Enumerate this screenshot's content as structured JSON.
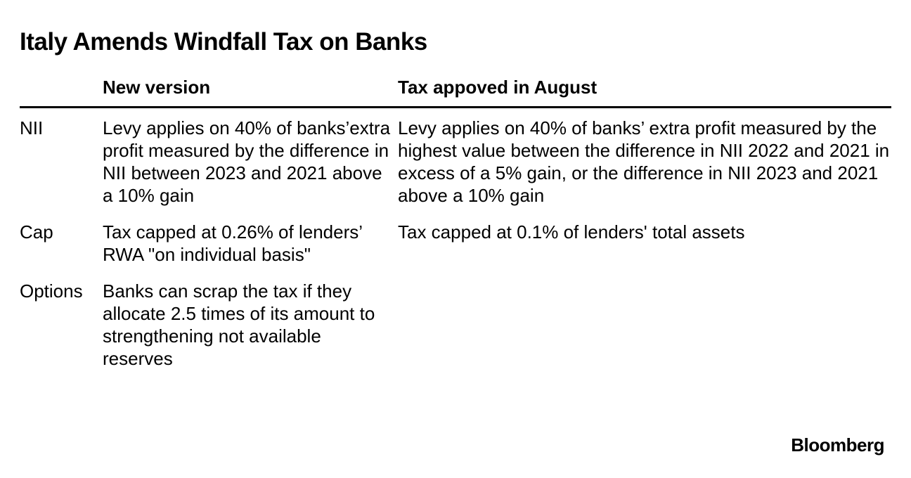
{
  "header": {
    "title": "Italy Amends Windfall Tax on Banks"
  },
  "table": {
    "columns": [
      "New version",
      "Tax appoved in August"
    ],
    "rows": [
      [
        "NII",
        "Levy applies on 40% of banks’extra profit measured by the difference in NII between 2023 and 2021 above a 10% gain",
        "Levy applies on 40% of banks’ extra profit measured by the highest value between the difference in NII 2022 and 2021 in excess of a 5% gain, or the difference in NII 2023 and 2021 above a 10% gain"
      ],
      [
        "Cap",
        "Tax capped at 0.26% of lenders’ RWA \"on individual basis\"",
        "Tax capped at 0.1% of lenders' total assets"
      ],
      [
        "Options",
        "Banks can scrap the tax if they allocate 2.5 times of its amount to strengthening not available reserves"
      ]
    ]
  },
  "footer": {
    "source": "Bloomberg"
  }
}
